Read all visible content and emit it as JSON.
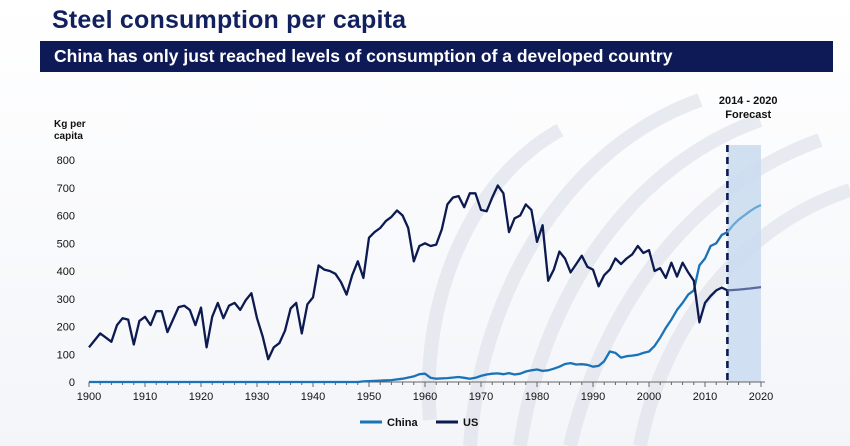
{
  "header": {
    "title": "Steel consumption per capita",
    "subtitle": "China has only just reached levels of consumption of a developed country"
  },
  "chart_data": {
    "type": "line",
    "ylabel_line1": "Kg per",
    "ylabel_line2": "capita",
    "xlim": [
      1900,
      2022
    ],
    "ylim": [
      0,
      800
    ],
    "x_ticks": [
      1900,
      1910,
      1920,
      1930,
      1940,
      1950,
      1960,
      1970,
      1980,
      1990,
      2000,
      2010,
      2020
    ],
    "y_ticks": [
      0,
      100,
      200,
      300,
      400,
      500,
      600,
      700,
      800
    ],
    "grid": false,
    "legend_position": "bottom",
    "forecast": {
      "label_line1": "2014 - 2020",
      "label_line2": "Forecast",
      "start": 2014,
      "end": 2020
    },
    "series": [
      {
        "name": "China",
        "color": "#1a73b8",
        "forecast_color": "#6aa8d8",
        "points": [
          [
            1900,
            0
          ],
          [
            1910,
            0
          ],
          [
            1920,
            0
          ],
          [
            1930,
            0
          ],
          [
            1940,
            0
          ],
          [
            1948,
            0
          ],
          [
            1949,
            2
          ],
          [
            1950,
            3
          ],
          [
            1952,
            5
          ],
          [
            1954,
            7
          ],
          [
            1956,
            12
          ],
          [
            1958,
            20
          ],
          [
            1959,
            28
          ],
          [
            1960,
            30
          ],
          [
            1961,
            15
          ],
          [
            1962,
            12
          ],
          [
            1964,
            14
          ],
          [
            1966,
            18
          ],
          [
            1967,
            15
          ],
          [
            1968,
            12
          ],
          [
            1969,
            15
          ],
          [
            1970,
            22
          ],
          [
            1971,
            27
          ],
          [
            1972,
            30
          ],
          [
            1973,
            31
          ],
          [
            1974,
            28
          ],
          [
            1975,
            32
          ],
          [
            1976,
            27
          ],
          [
            1977,
            30
          ],
          [
            1978,
            38
          ],
          [
            1979,
            42
          ],
          [
            1980,
            45
          ],
          [
            1981,
            40
          ],
          [
            1982,
            42
          ],
          [
            1983,
            48
          ],
          [
            1984,
            55
          ],
          [
            1985,
            65
          ],
          [
            1986,
            68
          ],
          [
            1987,
            63
          ],
          [
            1988,
            64
          ],
          [
            1989,
            62
          ],
          [
            1990,
            55
          ],
          [
            1991,
            58
          ],
          [
            1992,
            75
          ],
          [
            1993,
            110
          ],
          [
            1994,
            105
          ],
          [
            1995,
            88
          ],
          [
            1996,
            93
          ],
          [
            1997,
            95
          ],
          [
            1998,
            98
          ],
          [
            1999,
            105
          ],
          [
            2000,
            110
          ],
          [
            2001,
            130
          ],
          [
            2002,
            160
          ],
          [
            2003,
            195
          ],
          [
            2004,
            225
          ],
          [
            2005,
            260
          ],
          [
            2006,
            285
          ],
          [
            2007,
            315
          ],
          [
            2008,
            330
          ],
          [
            2009,
            420
          ],
          [
            2010,
            445
          ],
          [
            2011,
            490
          ],
          [
            2012,
            500
          ],
          [
            2013,
            530
          ],
          [
            2014,
            540
          ]
        ],
        "forecast_points": [
          [
            2014,
            540
          ],
          [
            2015,
            565
          ],
          [
            2016,
            585
          ],
          [
            2017,
            600
          ],
          [
            2018,
            615
          ],
          [
            2019,
            628
          ],
          [
            2020,
            638
          ]
        ]
      },
      {
        "name": "US",
        "color": "#0c1a50",
        "forecast_color": "#5a6aa0",
        "points": [
          [
            1900,
            125
          ],
          [
            1901,
            150
          ],
          [
            1902,
            175
          ],
          [
            1903,
            160
          ],
          [
            1904,
            145
          ],
          [
            1905,
            205
          ],
          [
            1906,
            230
          ],
          [
            1907,
            225
          ],
          [
            1908,
            135
          ],
          [
            1909,
            220
          ],
          [
            1910,
            235
          ],
          [
            1911,
            205
          ],
          [
            1912,
            255
          ],
          [
            1913,
            255
          ],
          [
            1914,
            180
          ],
          [
            1915,
            225
          ],
          [
            1916,
            270
          ],
          [
            1917,
            275
          ],
          [
            1918,
            260
          ],
          [
            1919,
            205
          ],
          [
            1920,
            268
          ],
          [
            1921,
            125
          ],
          [
            1922,
            235
          ],
          [
            1923,
            285
          ],
          [
            1924,
            230
          ],
          [
            1925,
            275
          ],
          [
            1926,
            285
          ],
          [
            1927,
            260
          ],
          [
            1928,
            295
          ],
          [
            1929,
            320
          ],
          [
            1930,
            230
          ],
          [
            1931,
            165
          ],
          [
            1932,
            82
          ],
          [
            1933,
            125
          ],
          [
            1934,
            140
          ],
          [
            1935,
            185
          ],
          [
            1936,
            265
          ],
          [
            1937,
            285
          ],
          [
            1938,
            175
          ],
          [
            1939,
            280
          ],
          [
            1940,
            305
          ],
          [
            1941,
            420
          ],
          [
            1942,
            405
          ],
          [
            1943,
            400
          ],
          [
            1944,
            390
          ],
          [
            1945,
            360
          ],
          [
            1946,
            315
          ],
          [
            1947,
            385
          ],
          [
            1948,
            435
          ],
          [
            1949,
            375
          ],
          [
            1950,
            520
          ],
          [
            1951,
            540
          ],
          [
            1952,
            555
          ],
          [
            1953,
            580
          ],
          [
            1954,
            595
          ],
          [
            1955,
            618
          ],
          [
            1956,
            600
          ],
          [
            1957,
            555
          ],
          [
            1958,
            435
          ],
          [
            1959,
            490
          ],
          [
            1960,
            500
          ],
          [
            1961,
            490
          ],
          [
            1962,
            495
          ],
          [
            1963,
            550
          ],
          [
            1964,
            640
          ],
          [
            1965,
            665
          ],
          [
            1966,
            670
          ],
          [
            1967,
            630
          ],
          [
            1968,
            680
          ],
          [
            1969,
            680
          ],
          [
            1970,
            620
          ],
          [
            1971,
            615
          ],
          [
            1972,
            665
          ],
          [
            1973,
            708
          ],
          [
            1974,
            680
          ],
          [
            1975,
            540
          ],
          [
            1976,
            590
          ],
          [
            1977,
            600
          ],
          [
            1978,
            640
          ],
          [
            1979,
            620
          ],
          [
            1980,
            505
          ],
          [
            1981,
            565
          ],
          [
            1982,
            365
          ],
          [
            1983,
            405
          ],
          [
            1984,
            470
          ],
          [
            1985,
            445
          ],
          [
            1986,
            395
          ],
          [
            1987,
            425
          ],
          [
            1988,
            455
          ],
          [
            1989,
            415
          ],
          [
            1990,
            405
          ],
          [
            1991,
            345
          ],
          [
            1992,
            385
          ],
          [
            1993,
            405
          ],
          [
            1994,
            445
          ],
          [
            1995,
            425
          ],
          [
            1996,
            445
          ],
          [
            1997,
            460
          ],
          [
            1998,
            490
          ],
          [
            1999,
            465
          ],
          [
            2000,
            475
          ],
          [
            2001,
            400
          ],
          [
            2002,
            410
          ],
          [
            2003,
            375
          ],
          [
            2004,
            430
          ],
          [
            2005,
            380
          ],
          [
            2006,
            430
          ],
          [
            2007,
            395
          ],
          [
            2008,
            365
          ],
          [
            2009,
            215
          ],
          [
            2010,
            285
          ],
          [
            2011,
            310
          ],
          [
            2012,
            330
          ],
          [
            2013,
            340
          ],
          [
            2014,
            330
          ]
        ],
        "forecast_points": [
          [
            2014,
            330
          ],
          [
            2016,
            333
          ],
          [
            2018,
            337
          ],
          [
            2020,
            342
          ]
        ]
      }
    ]
  }
}
